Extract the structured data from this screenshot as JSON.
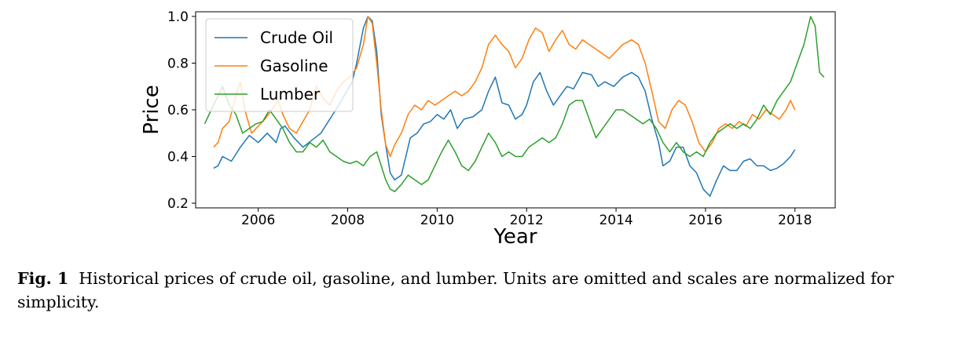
{
  "chart_data": {
    "type": "line",
    "xlabel": "Year",
    "ylabel": "Price",
    "xlim": [
      2004.6,
      2018.9
    ],
    "ylim": [
      0.18,
      1.02
    ],
    "xticks": [
      2006,
      2008,
      2010,
      2012,
      2014,
      2016,
      2018
    ],
    "yticks": [
      0.2,
      0.4,
      0.6,
      0.8,
      1.0
    ],
    "ytick_labels": [
      "0.2",
      "0.4",
      "0.6",
      "0.8",
      "1.0"
    ],
    "grid": false,
    "legend_position": "top-left",
    "series": [
      {
        "name": "Crude Oil",
        "color": "#1f77b4",
        "points": [
          [
            2005.0,
            0.35
          ],
          [
            2005.1,
            0.36
          ],
          [
            2005.2,
            0.4
          ],
          [
            2005.4,
            0.38
          ],
          [
            2005.6,
            0.44
          ],
          [
            2005.8,
            0.49
          ],
          [
            2006.0,
            0.46
          ],
          [
            2006.2,
            0.5
          ],
          [
            2006.4,
            0.46
          ],
          [
            2006.5,
            0.52
          ],
          [
            2006.6,
            0.53
          ],
          [
            2006.8,
            0.48
          ],
          [
            2007.0,
            0.44
          ],
          [
            2007.2,
            0.47
          ],
          [
            2007.4,
            0.5
          ],
          [
            2007.6,
            0.56
          ],
          [
            2007.8,
            0.62
          ],
          [
            2007.95,
            0.67
          ],
          [
            2008.1,
            0.72
          ],
          [
            2008.2,
            0.8
          ],
          [
            2008.35,
            0.95
          ],
          [
            2008.45,
            1.0
          ],
          [
            2008.55,
            0.98
          ],
          [
            2008.65,
            0.85
          ],
          [
            2008.75,
            0.58
          ],
          [
            2008.85,
            0.45
          ],
          [
            2008.95,
            0.33
          ],
          [
            2009.05,
            0.3
          ],
          [
            2009.2,
            0.32
          ],
          [
            2009.3,
            0.4
          ],
          [
            2009.4,
            0.48
          ],
          [
            2009.55,
            0.5
          ],
          [
            2009.7,
            0.54
          ],
          [
            2009.85,
            0.55
          ],
          [
            2010.0,
            0.58
          ],
          [
            2010.15,
            0.56
          ],
          [
            2010.3,
            0.6
          ],
          [
            2010.45,
            0.52
          ],
          [
            2010.6,
            0.56
          ],
          [
            2010.8,
            0.57
          ],
          [
            2011.0,
            0.6
          ],
          [
            2011.15,
            0.68
          ],
          [
            2011.3,
            0.74
          ],
          [
            2011.45,
            0.63
          ],
          [
            2011.6,
            0.62
          ],
          [
            2011.75,
            0.56
          ],
          [
            2011.9,
            0.58
          ],
          [
            2012.0,
            0.62
          ],
          [
            2012.15,
            0.72
          ],
          [
            2012.3,
            0.76
          ],
          [
            2012.45,
            0.68
          ],
          [
            2012.6,
            0.62
          ],
          [
            2012.75,
            0.66
          ],
          [
            2012.9,
            0.7
          ],
          [
            2013.05,
            0.69
          ],
          [
            2013.25,
            0.76
          ],
          [
            2013.45,
            0.75
          ],
          [
            2013.6,
            0.7
          ],
          [
            2013.75,
            0.72
          ],
          [
            2013.95,
            0.7
          ],
          [
            2014.15,
            0.74
          ],
          [
            2014.35,
            0.76
          ],
          [
            2014.5,
            0.74
          ],
          [
            2014.65,
            0.68
          ],
          [
            2014.8,
            0.56
          ],
          [
            2014.95,
            0.46
          ],
          [
            2015.05,
            0.36
          ],
          [
            2015.2,
            0.38
          ],
          [
            2015.35,
            0.44
          ],
          [
            2015.5,
            0.44
          ],
          [
            2015.65,
            0.36
          ],
          [
            2015.8,
            0.33
          ],
          [
            2015.95,
            0.26
          ],
          [
            2016.1,
            0.23
          ],
          [
            2016.25,
            0.3
          ],
          [
            2016.4,
            0.36
          ],
          [
            2016.55,
            0.34
          ],
          [
            2016.7,
            0.34
          ],
          [
            2016.85,
            0.38
          ],
          [
            2017.0,
            0.39
          ],
          [
            2017.15,
            0.36
          ],
          [
            2017.3,
            0.36
          ],
          [
            2017.45,
            0.34
          ],
          [
            2017.6,
            0.35
          ],
          [
            2017.75,
            0.37
          ],
          [
            2017.9,
            0.4
          ],
          [
            2018.0,
            0.43
          ]
        ]
      },
      {
        "name": "Gasoline",
        "color": "#ff7f0e",
        "points": [
          [
            2005.0,
            0.44
          ],
          [
            2005.1,
            0.46
          ],
          [
            2005.2,
            0.52
          ],
          [
            2005.35,
            0.55
          ],
          [
            2005.5,
            0.66
          ],
          [
            2005.6,
            0.72
          ],
          [
            2005.7,
            0.6
          ],
          [
            2005.85,
            0.5
          ],
          [
            2006.0,
            0.53
          ],
          [
            2006.15,
            0.56
          ],
          [
            2006.3,
            0.6
          ],
          [
            2006.45,
            0.64
          ],
          [
            2006.55,
            0.58
          ],
          [
            2006.7,
            0.52
          ],
          [
            2006.85,
            0.5
          ],
          [
            2007.0,
            0.55
          ],
          [
            2007.15,
            0.6
          ],
          [
            2007.3,
            0.7
          ],
          [
            2007.45,
            0.65
          ],
          [
            2007.6,
            0.62
          ],
          [
            2007.75,
            0.68
          ],
          [
            2007.9,
            0.72
          ],
          [
            2008.05,
            0.74
          ],
          [
            2008.2,
            0.78
          ],
          [
            2008.35,
            0.88
          ],
          [
            2008.45,
            1.0
          ],
          [
            2008.55,
            0.97
          ],
          [
            2008.65,
            0.8
          ],
          [
            2008.75,
            0.6
          ],
          [
            2008.85,
            0.45
          ],
          [
            2008.95,
            0.4
          ],
          [
            2009.05,
            0.45
          ],
          [
            2009.2,
            0.5
          ],
          [
            2009.35,
            0.58
          ],
          [
            2009.5,
            0.62
          ],
          [
            2009.65,
            0.6
          ],
          [
            2009.8,
            0.64
          ],
          [
            2009.95,
            0.62
          ],
          [
            2010.1,
            0.64
          ],
          [
            2010.25,
            0.66
          ],
          [
            2010.4,
            0.68
          ],
          [
            2010.55,
            0.66
          ],
          [
            2010.7,
            0.68
          ],
          [
            2010.85,
            0.72
          ],
          [
            2011.0,
            0.78
          ],
          [
            2011.15,
            0.88
          ],
          [
            2011.3,
            0.92
          ],
          [
            2011.45,
            0.88
          ],
          [
            2011.6,
            0.85
          ],
          [
            2011.75,
            0.78
          ],
          [
            2011.9,
            0.82
          ],
          [
            2012.05,
            0.9
          ],
          [
            2012.2,
            0.95
          ],
          [
            2012.35,
            0.93
          ],
          [
            2012.5,
            0.85
          ],
          [
            2012.65,
            0.9
          ],
          [
            2012.8,
            0.94
          ],
          [
            2012.95,
            0.88
          ],
          [
            2013.1,
            0.86
          ],
          [
            2013.25,
            0.9
          ],
          [
            2013.4,
            0.88
          ],
          [
            2013.55,
            0.86
          ],
          [
            2013.7,
            0.84
          ],
          [
            2013.85,
            0.82
          ],
          [
            2014.0,
            0.85
          ],
          [
            2014.15,
            0.88
          ],
          [
            2014.35,
            0.9
          ],
          [
            2014.5,
            0.88
          ],
          [
            2014.65,
            0.8
          ],
          [
            2014.8,
            0.68
          ],
          [
            2014.95,
            0.55
          ],
          [
            2015.1,
            0.52
          ],
          [
            2015.25,
            0.6
          ],
          [
            2015.4,
            0.64
          ],
          [
            2015.55,
            0.62
          ],
          [
            2015.7,
            0.55
          ],
          [
            2015.85,
            0.46
          ],
          [
            2016.0,
            0.42
          ],
          [
            2016.15,
            0.46
          ],
          [
            2016.3,
            0.52
          ],
          [
            2016.45,
            0.54
          ],
          [
            2016.6,
            0.52
          ],
          [
            2016.75,
            0.55
          ],
          [
            2016.9,
            0.53
          ],
          [
            2017.05,
            0.58
          ],
          [
            2017.2,
            0.56
          ],
          [
            2017.35,
            0.6
          ],
          [
            2017.5,
            0.58
          ],
          [
            2017.65,
            0.56
          ],
          [
            2017.8,
            0.6
          ],
          [
            2017.9,
            0.64
          ],
          [
            2018.0,
            0.6
          ]
        ]
      },
      {
        "name": "Lumber",
        "color": "#2ca02c",
        "points": [
          [
            2004.8,
            0.54
          ],
          [
            2004.95,
            0.6
          ],
          [
            2005.1,
            0.66
          ],
          [
            2005.2,
            0.7
          ],
          [
            2005.35,
            0.62
          ],
          [
            2005.5,
            0.58
          ],
          [
            2005.65,
            0.5
          ],
          [
            2005.8,
            0.52
          ],
          [
            2005.95,
            0.54
          ],
          [
            2006.1,
            0.55
          ],
          [
            2006.25,
            0.6
          ],
          [
            2006.4,
            0.56
          ],
          [
            2006.55,
            0.52
          ],
          [
            2006.7,
            0.46
          ],
          [
            2006.85,
            0.42
          ],
          [
            2007.0,
            0.42
          ],
          [
            2007.15,
            0.46
          ],
          [
            2007.3,
            0.44
          ],
          [
            2007.45,
            0.47
          ],
          [
            2007.6,
            0.42
          ],
          [
            2007.75,
            0.4
          ],
          [
            2007.9,
            0.38
          ],
          [
            2008.05,
            0.37
          ],
          [
            2008.2,
            0.38
          ],
          [
            2008.35,
            0.36
          ],
          [
            2008.5,
            0.4
          ],
          [
            2008.65,
            0.42
          ],
          [
            2008.75,
            0.36
          ],
          [
            2008.85,
            0.3
          ],
          [
            2008.95,
            0.26
          ],
          [
            2009.05,
            0.25
          ],
          [
            2009.2,
            0.28
          ],
          [
            2009.35,
            0.32
          ],
          [
            2009.5,
            0.3
          ],
          [
            2009.65,
            0.28
          ],
          [
            2009.8,
            0.3
          ],
          [
            2009.95,
            0.36
          ],
          [
            2010.1,
            0.42
          ],
          [
            2010.25,
            0.47
          ],
          [
            2010.4,
            0.42
          ],
          [
            2010.55,
            0.36
          ],
          [
            2010.7,
            0.34
          ],
          [
            2010.85,
            0.38
          ],
          [
            2011.0,
            0.44
          ],
          [
            2011.15,
            0.5
          ],
          [
            2011.3,
            0.46
          ],
          [
            2011.45,
            0.4
          ],
          [
            2011.6,
            0.42
          ],
          [
            2011.75,
            0.4
          ],
          [
            2011.9,
            0.4
          ],
          [
            2012.05,
            0.44
          ],
          [
            2012.2,
            0.46
          ],
          [
            2012.35,
            0.48
          ],
          [
            2012.5,
            0.46
          ],
          [
            2012.65,
            0.48
          ],
          [
            2012.8,
            0.54
          ],
          [
            2012.95,
            0.62
          ],
          [
            2013.1,
            0.64
          ],
          [
            2013.25,
            0.64
          ],
          [
            2013.4,
            0.56
          ],
          [
            2013.55,
            0.48
          ],
          [
            2013.7,
            0.52
          ],
          [
            2013.85,
            0.56
          ],
          [
            2014.0,
            0.6
          ],
          [
            2014.15,
            0.6
          ],
          [
            2014.3,
            0.58
          ],
          [
            2014.45,
            0.56
          ],
          [
            2014.6,
            0.54
          ],
          [
            2014.75,
            0.56
          ],
          [
            2014.9,
            0.52
          ],
          [
            2015.05,
            0.46
          ],
          [
            2015.2,
            0.42
          ],
          [
            2015.35,
            0.46
          ],
          [
            2015.5,
            0.42
          ],
          [
            2015.65,
            0.4
          ],
          [
            2015.8,
            0.42
          ],
          [
            2015.95,
            0.4
          ],
          [
            2016.1,
            0.46
          ],
          [
            2016.25,
            0.5
          ],
          [
            2016.4,
            0.52
          ],
          [
            2016.55,
            0.54
          ],
          [
            2016.7,
            0.52
          ],
          [
            2016.85,
            0.54
          ],
          [
            2017.0,
            0.52
          ],
          [
            2017.15,
            0.56
          ],
          [
            2017.3,
            0.62
          ],
          [
            2017.45,
            0.58
          ],
          [
            2017.6,
            0.64
          ],
          [
            2017.75,
            0.68
          ],
          [
            2017.9,
            0.72
          ],
          [
            2018.05,
            0.8
          ],
          [
            2018.2,
            0.88
          ],
          [
            2018.35,
            1.0
          ],
          [
            2018.45,
            0.96
          ],
          [
            2018.55,
            0.76
          ],
          [
            2018.65,
            0.74
          ]
        ]
      }
    ]
  },
  "caption": {
    "label": "Fig. 1",
    "text": "Historical prices of crude oil, gasoline, and lumber. Units are omitted and scales are normalized for simplicity."
  }
}
